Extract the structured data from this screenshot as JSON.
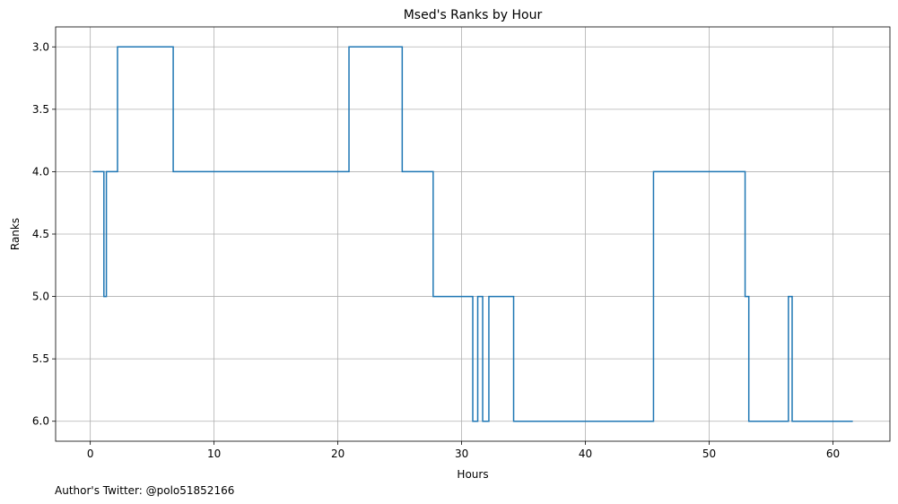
{
  "chart_data": {
    "type": "line",
    "step": true,
    "title": "Msed's Ranks by Hour",
    "xlabel": "Hours",
    "ylabel": "Ranks",
    "xlim": [
      -2.8,
      64.6
    ],
    "ylim": [
      6.16,
      2.84
    ],
    "y_inverted": true,
    "grid": true,
    "xticks": [
      0,
      10,
      20,
      30,
      40,
      50,
      60
    ],
    "yticks": [
      3.0,
      3.5,
      4.0,
      4.5,
      5.0,
      5.5,
      6.0
    ],
    "line_color": "#1f77b4",
    "series": [
      {
        "x": [
          0.2,
          1.1,
          1.3,
          2.2,
          6.7,
          20.9,
          25.2,
          27.7,
          30.9,
          31.3,
          31.7,
          32.2,
          34.2,
          45.5,
          52.9,
          53.2,
          56.4,
          56.7,
          61.6
        ],
        "y": [
          4.0,
          5.0,
          4.0,
          3.0,
          4.0,
          3.0,
          4.0,
          5.0,
          6.0,
          5.0,
          6.0,
          5.0,
          6.0,
          4.0,
          5.0,
          6.0,
          5.0,
          6.0,
          6.0
        ]
      }
    ]
  },
  "footer": "Author's Twitter: @polo51852166"
}
